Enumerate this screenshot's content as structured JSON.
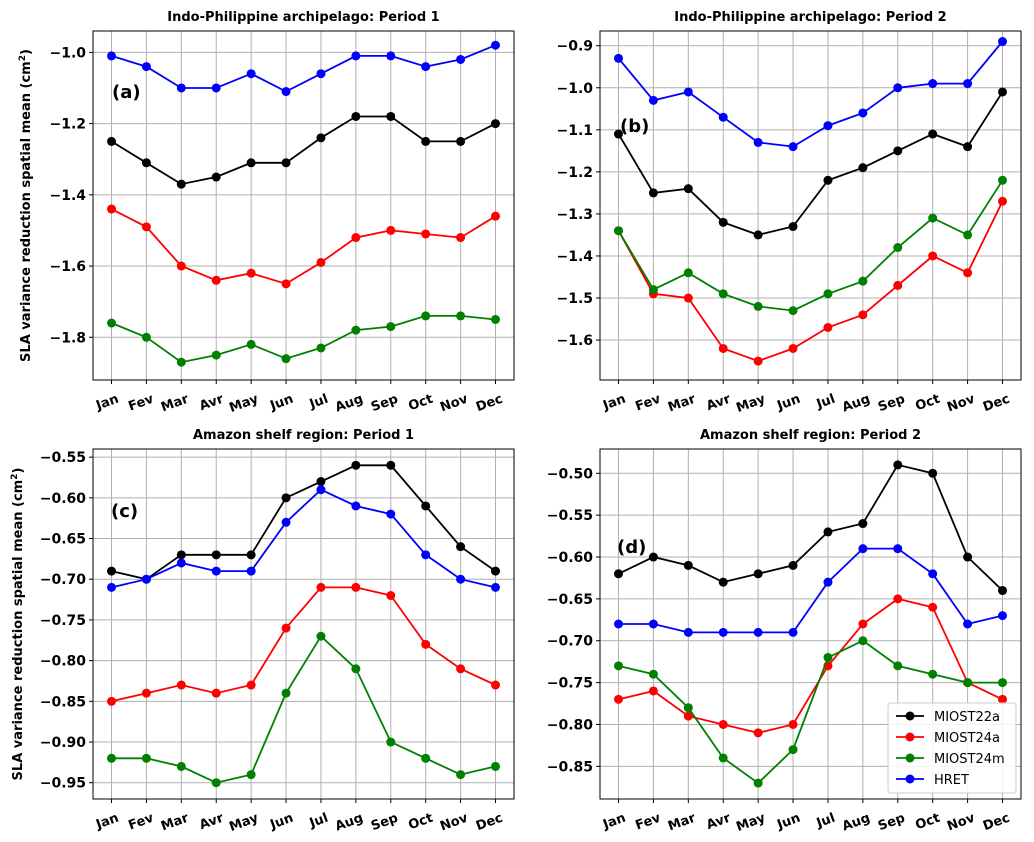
{
  "months": [
    "Jan",
    "Fev",
    "Mar",
    "Avr",
    "May",
    "Jun",
    "Jul",
    "Aug",
    "Sep",
    "Oct",
    "Nov",
    "Dec"
  ],
  "colors": {
    "MIOST22a": "#000000",
    "MIOST24a": "#ff0000",
    "MIOST24m": "#008000",
    "HRET": "#0000ff"
  },
  "chart_data": [
    {
      "type": "line",
      "title": "Indo-Philippine archipelago: Period 1",
      "panel_label": "(a)",
      "ylabel": "SLA variance reduction spatial mean (cm",
      "ylabel_sup": "2",
      "ylabel_close": ")",
      "ylim": [
        -1.92,
        -0.94
      ],
      "yticks": [
        -1.8,
        -1.6,
        -1.4,
        -1.2,
        -1.0
      ],
      "ytick_labels": [
        "−1.8",
        "−1.6",
        "−1.4",
        "−1.2",
        "−1.0"
      ],
      "series": [
        {
          "name": "MIOST22a",
          "values": [
            -1.25,
            -1.31,
            -1.37,
            -1.35,
            -1.31,
            -1.31,
            -1.24,
            -1.18,
            -1.18,
            -1.25,
            -1.25,
            -1.2
          ]
        },
        {
          "name": "MIOST24a",
          "values": [
            -1.44,
            -1.49,
            -1.6,
            -1.64,
            -1.62,
            -1.65,
            -1.59,
            -1.52,
            -1.5,
            -1.51,
            -1.52,
            -1.46
          ]
        },
        {
          "name": "MIOST24m",
          "values": [
            -1.76,
            -1.8,
            -1.87,
            -1.85,
            -1.82,
            -1.86,
            -1.83,
            -1.78,
            -1.77,
            -1.74,
            -1.74,
            -1.75
          ]
        },
        {
          "name": "HRET",
          "values": [
            -1.01,
            -1.04,
            -1.1,
            -1.1,
            -1.06,
            -1.11,
            -1.06,
            -1.01,
            -1.01,
            -1.04,
            -1.02,
            -0.98
          ]
        }
      ]
    },
    {
      "type": "line",
      "title": "Indo-Philippine archipelago: Period 2",
      "panel_label": "(b)",
      "ylim": [
        -1.695,
        -0.865
      ],
      "yticks": [
        -1.6,
        -1.5,
        -1.4,
        -1.3,
        -1.2,
        -1.1,
        -1.0,
        -0.9
      ],
      "ytick_labels": [
        "−1.6",
        "−1.5",
        "−1.4",
        "−1.3",
        "−1.2",
        "−1.1",
        "−1.0",
        "−0.9"
      ],
      "series": [
        {
          "name": "MIOST22a",
          "values": [
            -1.11,
            -1.25,
            -1.24,
            -1.32,
            -1.35,
            -1.33,
            -1.22,
            -1.19,
            -1.15,
            -1.11,
            -1.14,
            -1.01
          ]
        },
        {
          "name": "MIOST24a",
          "values": [
            -1.34,
            -1.49,
            -1.5,
            -1.62,
            -1.65,
            -1.62,
            -1.57,
            -1.54,
            -1.47,
            -1.4,
            -1.44,
            -1.27
          ]
        },
        {
          "name": "MIOST24m",
          "values": [
            -1.34,
            -1.48,
            -1.44,
            -1.49,
            -1.52,
            -1.53,
            -1.49,
            -1.46,
            -1.38,
            -1.31,
            -1.35,
            -1.22
          ]
        },
        {
          "name": "HRET",
          "values": [
            -0.93,
            -1.03,
            -1.01,
            -1.07,
            -1.13,
            -1.14,
            -1.09,
            -1.06,
            -1.0,
            -0.99,
            -0.99,
            -0.89
          ]
        }
      ]
    },
    {
      "type": "line",
      "title": "Amazon shelf region: Period 1",
      "panel_label": "(c)",
      "ylabel": "SLA variance reduction spatial mean (cm",
      "ylabel_sup": "2",
      "ylabel_close": ")",
      "ylim": [
        -0.97,
        -0.54
      ],
      "yticks": [
        -0.95,
        -0.9,
        -0.85,
        -0.8,
        -0.75,
        -0.7,
        -0.65,
        -0.6,
        -0.55
      ],
      "ytick_labels": [
        "−0.95",
        "−0.90",
        "−0.85",
        "−0.80",
        "−0.75",
        "−0.70",
        "−0.65",
        "−0.60",
        "−0.55"
      ],
      "series": [
        {
          "name": "MIOST22a",
          "values": [
            -0.69,
            -0.7,
            -0.67,
            -0.67,
            -0.67,
            -0.6,
            -0.58,
            -0.56,
            -0.56,
            -0.61,
            -0.66,
            -0.69
          ]
        },
        {
          "name": "MIOST24a",
          "values": [
            -0.85,
            -0.84,
            -0.83,
            -0.84,
            -0.83,
            -0.76,
            -0.71,
            -0.71,
            -0.72,
            -0.78,
            -0.81,
            -0.83
          ]
        },
        {
          "name": "MIOST24m",
          "values": [
            -0.92,
            -0.92,
            -0.93,
            -0.95,
            -0.94,
            -0.84,
            -0.77,
            -0.81,
            -0.9,
            -0.92,
            -0.94,
            -0.93
          ]
        },
        {
          "name": "HRET",
          "values": [
            -0.71,
            -0.7,
            -0.68,
            -0.69,
            -0.69,
            -0.63,
            -0.59,
            -0.61,
            -0.62,
            -0.67,
            -0.7,
            -0.71
          ]
        }
      ]
    },
    {
      "type": "line",
      "title": "Amazon shelf region: Period 2",
      "panel_label": "(d)",
      "ylim": [
        -0.889,
        -0.471
      ],
      "yticks": [
        -0.85,
        -0.8,
        -0.75,
        -0.7,
        -0.65,
        -0.6,
        -0.55,
        -0.5
      ],
      "ytick_labels": [
        "−0.85",
        "−0.80",
        "−0.75",
        "−0.70",
        "−0.65",
        "−0.60",
        "−0.55",
        "−0.50"
      ],
      "series": [
        {
          "name": "MIOST22a",
          "values": [
            -0.62,
            -0.6,
            -0.61,
            -0.63,
            -0.62,
            -0.61,
            -0.57,
            -0.56,
            -0.49,
            -0.5,
            -0.6,
            -0.64
          ]
        },
        {
          "name": "MIOST24a",
          "values": [
            -0.77,
            -0.76,
            -0.79,
            -0.8,
            -0.81,
            -0.8,
            -0.73,
            -0.68,
            -0.65,
            -0.66,
            -0.75,
            -0.77
          ]
        },
        {
          "name": "MIOST24m",
          "values": [
            -0.73,
            -0.74,
            -0.78,
            -0.84,
            -0.87,
            -0.83,
            -0.72,
            -0.7,
            -0.73,
            -0.74,
            -0.75,
            -0.75
          ]
        },
        {
          "name": "HRET",
          "values": [
            -0.68,
            -0.68,
            -0.69,
            -0.69,
            -0.69,
            -0.69,
            -0.63,
            -0.59,
            -0.59,
            -0.62,
            -0.68,
            -0.67
          ]
        }
      ],
      "legend": {
        "position": "lower-right",
        "entries": [
          "MIOST22a",
          "MIOST24a",
          "MIOST24m",
          "HRET"
        ]
      }
    }
  ]
}
